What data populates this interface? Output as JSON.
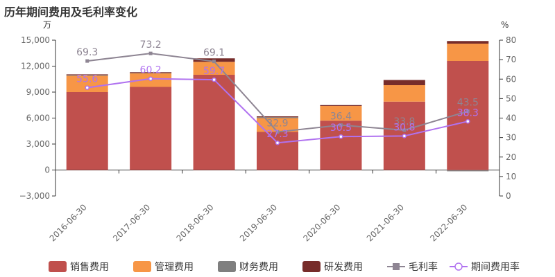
{
  "chart_data": {
    "type": "bar",
    "title": "历年期间费用及毛利率变化",
    "left_unit": "万",
    "right_unit": "%",
    "categories": [
      "2016-06-30",
      "2017-06-30",
      "2018-06-30",
      "2019-06-30",
      "2020-06-30",
      "2021-06-30",
      "2022-06-30"
    ],
    "left_ylim": [
      -3000,
      15000
    ],
    "left_ticks": [
      -3000,
      0,
      3000,
      6000,
      9000,
      12000,
      15000
    ],
    "right_ylim": [
      0,
      80
    ],
    "right_ticks": [
      0,
      10,
      20,
      30,
      40,
      50,
      60,
      70,
      80
    ],
    "stack_series": [
      {
        "name": "销售费用",
        "color": "#c0504d",
        "values": [
          9000,
          9600,
          11000,
          4400,
          5700,
          7900,
          12600
        ]
      },
      {
        "name": "管理费用",
        "color": "#f79646",
        "values": [
          1900,
          1600,
          1500,
          1600,
          1700,
          1900,
          2000
        ]
      },
      {
        "name": "财务费用",
        "color": "#7f7f7f",
        "values": [
          100,
          50,
          0,
          100,
          0,
          0,
          -150
        ]
      },
      {
        "name": "研发费用",
        "color": "#772c2a",
        "values": [
          50,
          50,
          400,
          100,
          100,
          600,
          300
        ]
      }
    ],
    "line_series": [
      {
        "name": "毛利率",
        "color": "#8e8593",
        "marker": "square",
        "values": [
          69.3,
          73.2,
          69.1,
          32.9,
          36.4,
          33.8,
          43.5
        ],
        "labels": [
          "69.3",
          "73.2",
          "69.1",
          "32.9",
          "36.4",
          "33.8",
          "43.5"
        ]
      },
      {
        "name": "期间费用率",
        "color": "#b072f0",
        "marker": "circle",
        "values": [
          55.6,
          60.2,
          59.7,
          27.3,
          30.5,
          30.8,
          38.3
        ],
        "labels": [
          "55.6",
          "60.2",
          "59.7",
          "27.3",
          "30.5",
          "30.8",
          "38.3"
        ]
      }
    ],
    "legend_position": "bottom",
    "grid": false
  }
}
